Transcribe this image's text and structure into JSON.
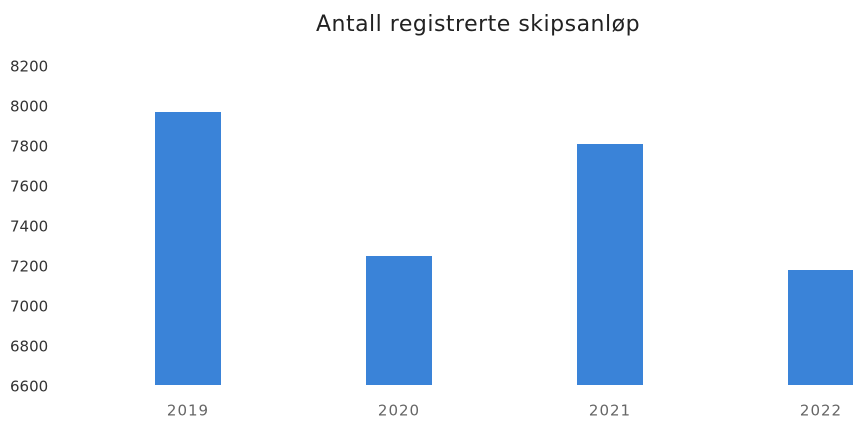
{
  "chart_data": {
    "type": "bar",
    "title": "Antall registrerte skipsanløp",
    "categories": [
      "2019",
      "2020",
      "2021",
      "2022"
    ],
    "values": [
      7975,
      7255,
      7815,
      7185
    ],
    "color": "#3a83d8",
    "ylim": [
      6600,
      8200
    ],
    "yticks": [
      6600,
      6800,
      7000,
      7200,
      7400,
      7600,
      7800,
      8000,
      8200
    ],
    "grid": false
  }
}
